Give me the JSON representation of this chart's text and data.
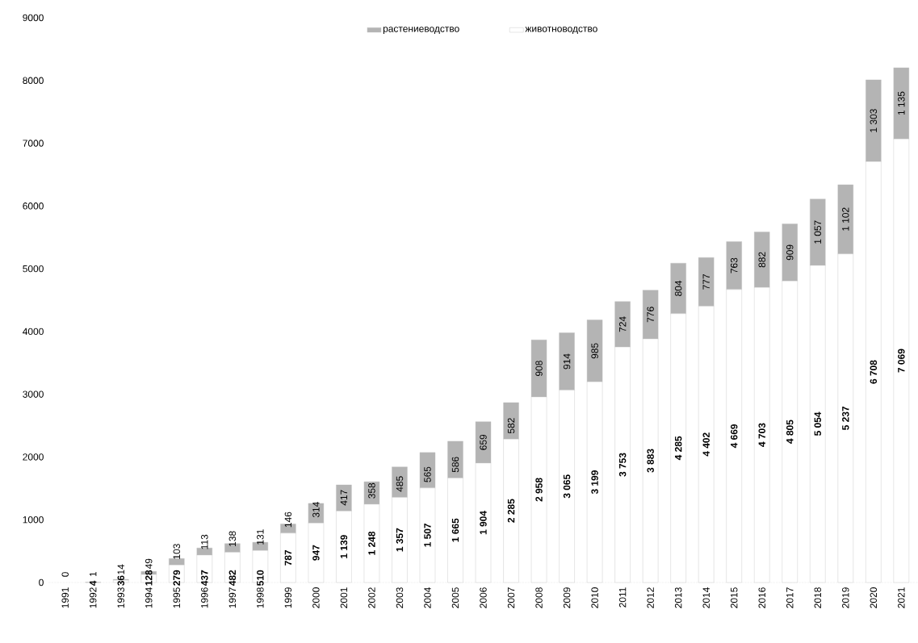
{
  "chart_data": {
    "type": "bar",
    "stacked": true,
    "categories": [
      "1991",
      "1992",
      "1993",
      "1994",
      "1995",
      "1996",
      "1997",
      "1998",
      "1999",
      "2000",
      "2001",
      "2002",
      "2003",
      "2004",
      "2005",
      "2006",
      "2007",
      "2008",
      "2009",
      "2010",
      "2011",
      "2012",
      "2013",
      "2014",
      "2015",
      "2016",
      "2017",
      "2018",
      "2019",
      "2020",
      "2021"
    ],
    "series": [
      {
        "name": "животноводство",
        "color": "#ffffff",
        "values": [
          null,
          4,
          36,
          128,
          279,
          437,
          482,
          510,
          787,
          947,
          1139,
          1248,
          1357,
          1507,
          1665,
          1904,
          2285,
          2958,
          3065,
          3199,
          3753,
          3883,
          4285,
          4402,
          4669,
          4703,
          4805,
          5054,
          5237,
          6708,
          7069
        ],
        "value_labels": [
          null,
          "4",
          "36",
          "128",
          "279",
          "437",
          "482",
          "510",
          "787",
          "947",
          "1 139",
          "1 248",
          "1 357",
          "1 507",
          "1 665",
          "1 904",
          "2 285",
          "2 958",
          "3 065",
          "3 199",
          "3 753",
          "3 883",
          "4 285",
          "4 402",
          "4 669",
          "4 703",
          "4 805",
          "5 054",
          "5 237",
          "6 708",
          "7 069"
        ]
      },
      {
        "name": "растениеводство",
        "color": "#b4b4b4",
        "values": [
          0,
          1,
          14,
          49,
          103,
          113,
          138,
          131,
          146,
          314,
          417,
          358,
          485,
          565,
          586,
          659,
          582,
          908,
          914,
          985,
          724,
          776,
          804,
          777,
          763,
          882,
          909,
          1057,
          1102,
          1303,
          1135
        ],
        "value_labels": [
          "0",
          "1",
          "14",
          "49",
          "103",
          "113",
          "138",
          "131",
          "146",
          "314",
          "417",
          "358",
          "485",
          "565",
          "586",
          "659",
          "582",
          "908",
          "914",
          "985",
          "724",
          "776",
          "804",
          "777",
          "763",
          "882",
          "909",
          "1 057",
          "1 102",
          "1 303",
          "1 135"
        ]
      }
    ],
    "ylim": [
      0,
      9000
    ],
    "yticks": [
      0,
      1000,
      2000,
      3000,
      4000,
      5000,
      6000,
      7000,
      8000,
      9000
    ],
    "grid": false,
    "legend": "top"
  }
}
